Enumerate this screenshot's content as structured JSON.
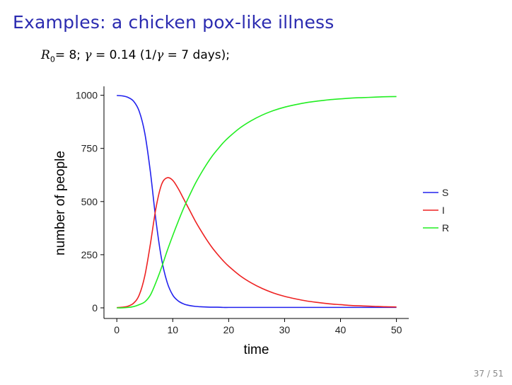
{
  "slide": {
    "title": "Examples: a chicken pox-like illness",
    "formula": {
      "r_symbol": "R",
      "r_sub": "0",
      "r_value": "= 8; ",
      "gamma_symbol": "γ",
      "gamma_value": " = 0.14 (1/",
      "gamma2": "γ",
      "days": " = 7 days);"
    },
    "page": "37 / 51"
  },
  "chart_data": {
    "type": "line",
    "title": "",
    "xlabel": "time",
    "ylabel": "number of people",
    "xlim": [
      -2.3,
      52.2
    ],
    "ylim": [
      -50,
      1042
    ],
    "xticks": [
      0,
      10,
      20,
      30,
      40,
      50
    ],
    "yticks": [
      0,
      250,
      500,
      750,
      1000
    ],
    "grid": false,
    "legend_position": "right",
    "x": [
      0,
      1,
      2,
      3,
      4,
      5,
      6,
      7,
      8,
      9,
      10,
      11,
      12,
      13,
      14,
      15,
      16,
      17,
      18,
      19,
      20,
      22,
      24,
      26,
      28,
      30,
      32,
      34,
      36,
      38,
      40,
      42,
      44,
      46,
      48,
      50
    ],
    "series": [
      {
        "name": "S",
        "color": "#2222ee",
        "values": [
          999,
          997,
          990,
          972,
          925,
          822,
          640,
          410,
          230,
          120,
          60,
          32,
          18,
          11,
          7,
          5,
          4,
          3,
          3,
          2,
          2,
          2,
          2,
          2,
          2,
          2,
          2,
          2,
          2,
          2,
          2,
          2,
          2,
          2,
          2,
          2
        ]
      },
      {
        "name": "I",
        "color": "#ee2222",
        "values": [
          1,
          3,
          8,
          22,
          60,
          150,
          300,
          470,
          580,
          612,
          600,
          560,
          510,
          460,
          410,
          365,
          323,
          285,
          252,
          222,
          196,
          152,
          118,
          91,
          70,
          54,
          42,
          32,
          25,
          19,
          15,
          11,
          9,
          7,
          5,
          4
        ]
      },
      {
        "name": "R",
        "color": "#22ee22",
        "values": [
          0,
          0,
          2,
          6,
          15,
          28,
          60,
          120,
          190,
          268,
          340,
          408,
          472,
          529,
          583,
          630,
          673,
          712,
          745,
          776,
          802,
          846,
          880,
          907,
          928,
          944,
          956,
          966,
          973,
          979,
          983,
          987,
          989,
          991,
          993,
          994
        ]
      }
    ]
  }
}
